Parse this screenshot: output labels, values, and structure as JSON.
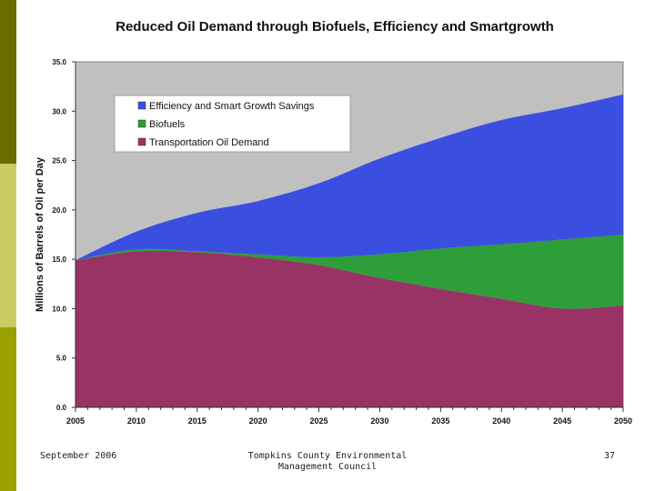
{
  "chart_data": {
    "type": "area",
    "stacked": true,
    "title": "Reduced Oil Demand through Biofuels, Efficiency and Smartgrowth",
    "xlabel": "",
    "ylabel": "Millions of Barrels of Oil per Day",
    "xlim": [
      2005,
      2050
    ],
    "ylim": [
      0,
      35
    ],
    "x_ticks": [
      "2005",
      "2010",
      "2015",
      "2020",
      "2025",
      "2030",
      "2035",
      "2040",
      "2045",
      "2050"
    ],
    "y_ticks": [
      "0.0",
      "5.0",
      "10.0",
      "15.0",
      "20.0",
      "25.0",
      "30.0",
      "35.0"
    ],
    "legend_position": "top-left",
    "x": [
      2005,
      2010,
      2015,
      2020,
      2025,
      2030,
      2035,
      2040,
      2045,
      2050
    ],
    "series": [
      {
        "name": "Transportation Oil Demand",
        "color": "#993366",
        "values": [
          14.9,
          15.8,
          15.7,
          15.2,
          14.4,
          13.1,
          12.0,
          11.0,
          10.0,
          10.3
        ]
      },
      {
        "name": "Biofuels",
        "color": "#2e9e3a",
        "values": [
          0.0,
          0.2,
          0.1,
          0.3,
          0.8,
          2.4,
          4.1,
          5.5,
          7.0,
          7.2
        ]
      },
      {
        "name": "Efficiency and Smart Growth Savings",
        "color": "#3a4fe0",
        "values": [
          0.0,
          1.8,
          3.9,
          5.4,
          7.5,
          9.7,
          11.2,
          12.6,
          13.3,
          14.2
        ]
      }
    ],
    "legend_order": [
      "Efficiency and Smart Growth Savings",
      "Biofuels",
      "Transportation Oil Demand"
    ]
  },
  "footer": {
    "date": "September 2006",
    "source_line1": "Tompkins County Environmental",
    "source_line2": "Management Council",
    "page_number": "37"
  }
}
